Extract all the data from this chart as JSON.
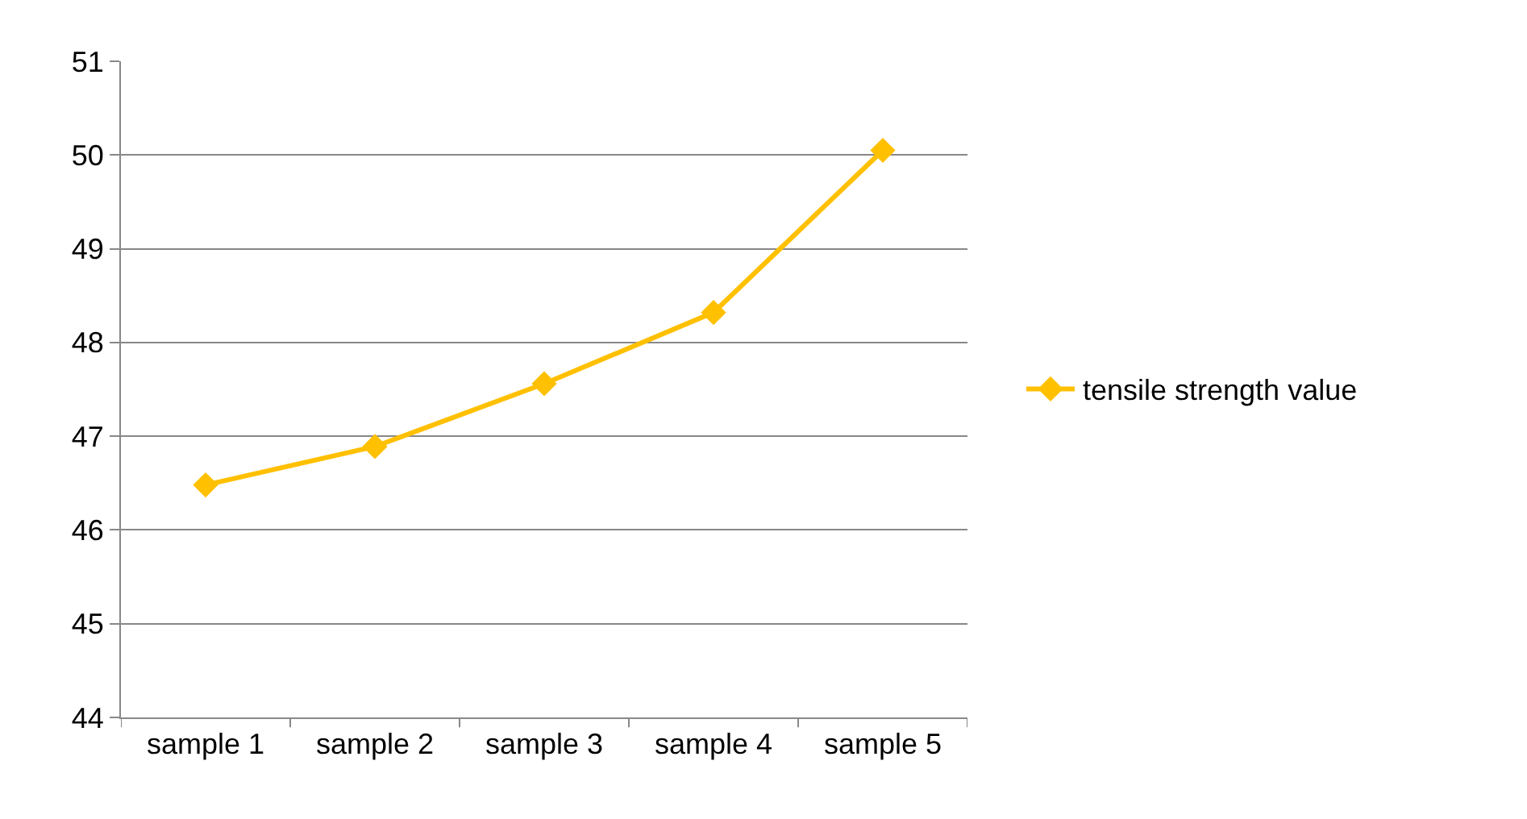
{
  "chart_data": {
    "type": "line",
    "categories": [
      "sample 1",
      "sample 2",
      "sample 3",
      "sample 4",
      "sample 5"
    ],
    "series": [
      {
        "name": "tensile strength value",
        "color": "#ffc000",
        "values": [
          46.48,
          46.89,
          47.56,
          48.32,
          50.05
        ]
      }
    ],
    "ylim": [
      44,
      51
    ],
    "yticks": [
      44,
      45,
      46,
      47,
      48,
      49,
      50,
      51
    ],
    "grid": "y",
    "legend": "right",
    "marker": "diamond",
    "line_style": "solid"
  }
}
